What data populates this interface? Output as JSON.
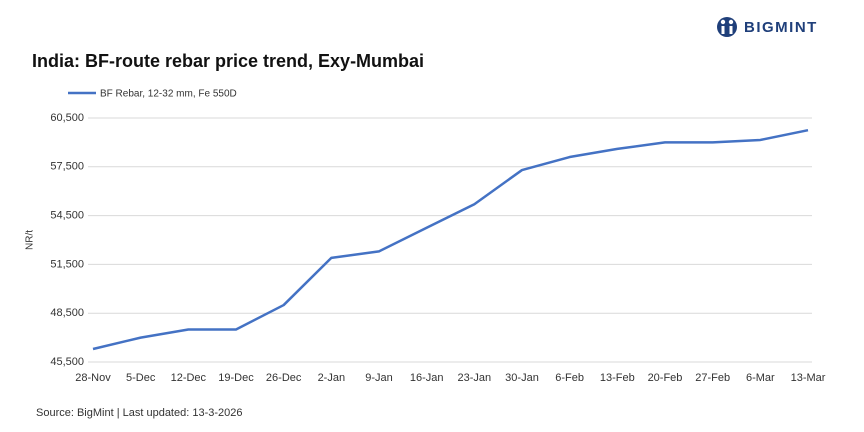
{
  "chart_data": {
    "type": "line",
    "brand": "BIGMINT",
    "title": "India: BF-route rebar price trend, Exy-Mumbai",
    "ylabel": "NR/t",
    "source": "Source: BigMint | Last updated: 13-3-2026",
    "categories": [
      "28-Nov",
      "5-Dec",
      "12-Dec",
      "19-Dec",
      "26-Dec",
      "2-Jan",
      "9-Jan",
      "16-Jan",
      "23-Jan",
      "30-Jan",
      "6-Feb",
      "13-Feb",
      "20-Feb",
      "27-Feb",
      "6-Mar",
      "13-Mar"
    ],
    "series": [
      {
        "name": "BF Rebar, 12-32 mm, Fe 550D",
        "color": "#4472c4",
        "values": [
          46300,
          47000,
          47500,
          47500,
          49000,
          51900,
          52300,
          53750,
          55200,
          57300,
          58100,
          58600,
          59000,
          59000,
          59150,
          59750
        ]
      }
    ],
    "ylim": [
      45500,
      60500
    ],
    "yticks": [
      {
        "value": 45500,
        "label": "45,500"
      },
      {
        "value": 48500,
        "label": "48,500"
      },
      {
        "value": 51500,
        "label": "51,500"
      },
      {
        "value": 54500,
        "label": "54,500"
      },
      {
        "value": 57500,
        "label": "57,500"
      },
      {
        "value": 60500,
        "label": "60,500"
      }
    ],
    "grid": true
  }
}
